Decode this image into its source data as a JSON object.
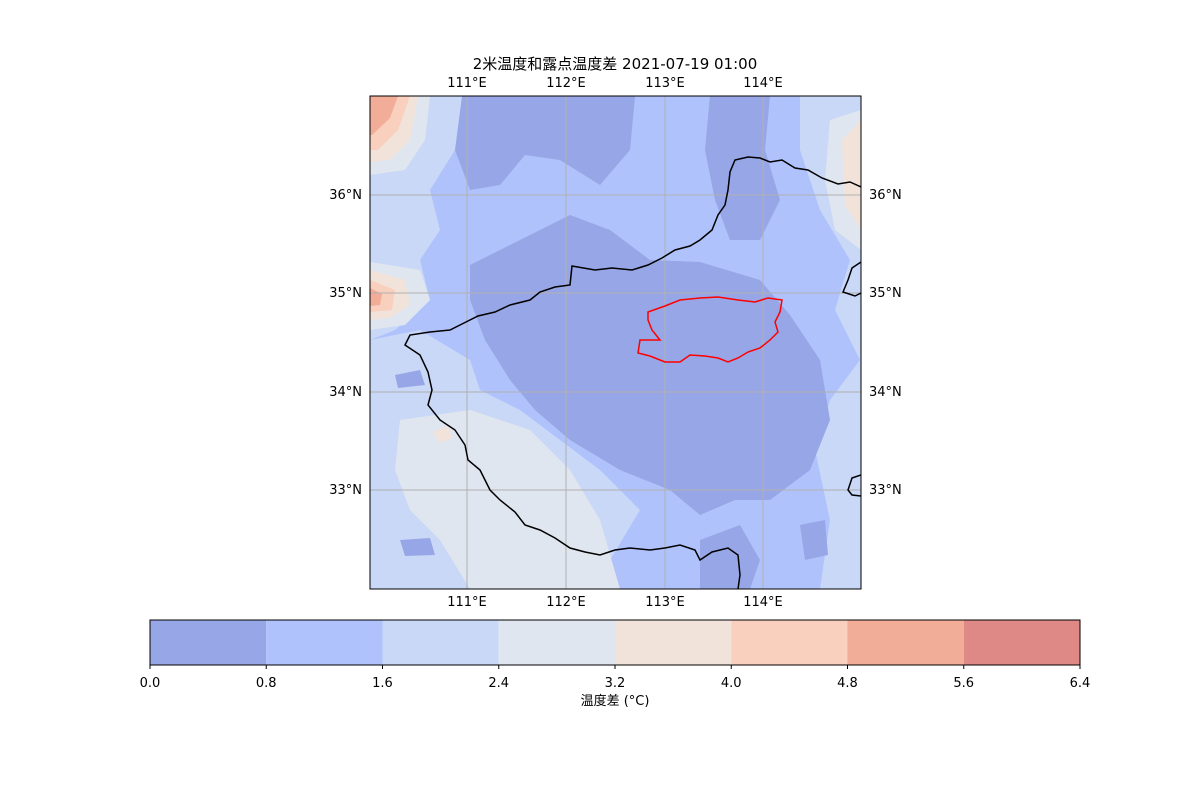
{
  "map": {
    "title": "2米温度和露点温度差 2021-07-19 01:00",
    "lon_ticks": [
      "111°E",
      "112°E",
      "113°E",
      "114°E"
    ],
    "lat_ticks": [
      "36°N",
      "35°N",
      "34°N",
      "33°N"
    ],
    "extent": {
      "lon_min": 110.0,
      "lon_max": 115.0,
      "lat_min": 32.0,
      "lat_max": 37.0
    },
    "grid": true,
    "boundaries": [
      {
        "kind": "province",
        "color": "#000000"
      },
      {
        "kind": "city",
        "color": "#ff0000"
      }
    ]
  },
  "colorbar": {
    "label": "温度差 (°C)",
    "tick_labels": [
      "0.0",
      "0.8",
      "1.6",
      "2.4",
      "3.2",
      "4.0",
      "4.8",
      "5.6",
      "6.4"
    ],
    "levels": [
      0.0,
      0.8,
      1.6,
      2.4,
      3.2,
      4.0,
      4.8,
      5.6,
      6.4
    ],
    "colors": [
      "#97a6e6",
      "#afc2fb",
      "#c9d8f7",
      "#e0e6ef",
      "#f2e3da",
      "#f9cfbd",
      "#f1ad98",
      "#de8985"
    ]
  }
}
